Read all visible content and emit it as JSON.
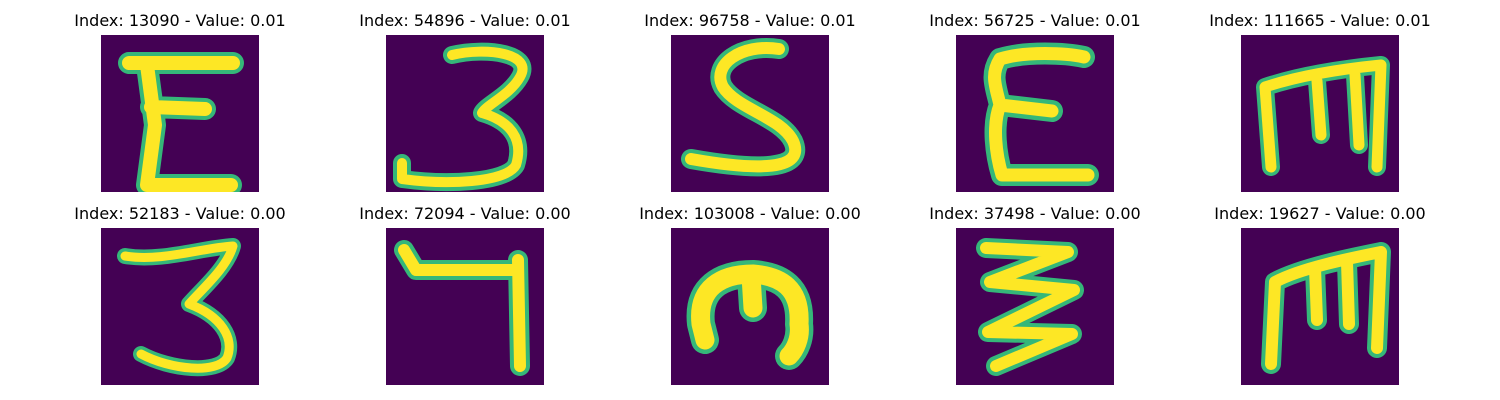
{
  "panels": [
    {
      "title": "Index: 13090 - Value: 0.01",
      "glyph": "E-shape"
    },
    {
      "title": "Index: 54896 - Value: 0.01",
      "glyph": "3-shape"
    },
    {
      "title": "Index: 96758 - Value: 0.01",
      "glyph": "S-shape"
    },
    {
      "title": "Index: 56725 - Value: 0.01",
      "glyph": "E-shape"
    },
    {
      "title": "Index: 111665 - Value: 0.01",
      "glyph": "m-shape"
    },
    {
      "title": "Index: 52183 - Value: 0.00",
      "glyph": "3-shape"
    },
    {
      "title": "Index: 72094 - Value: 0.00",
      "glyph": "7-shape"
    },
    {
      "title": "Index: 103008 - Value: 0.00",
      "glyph": "m-shape"
    },
    {
      "title": "Index: 37498 - Value: 0.00",
      "glyph": "zigzag-shape"
    },
    {
      "title": "Index: 19627 - Value: 0.00",
      "glyph": "m-shape"
    }
  ],
  "colors": {
    "background": "#440154",
    "stroke": "#fde725",
    "edge": "#35b779"
  }
}
